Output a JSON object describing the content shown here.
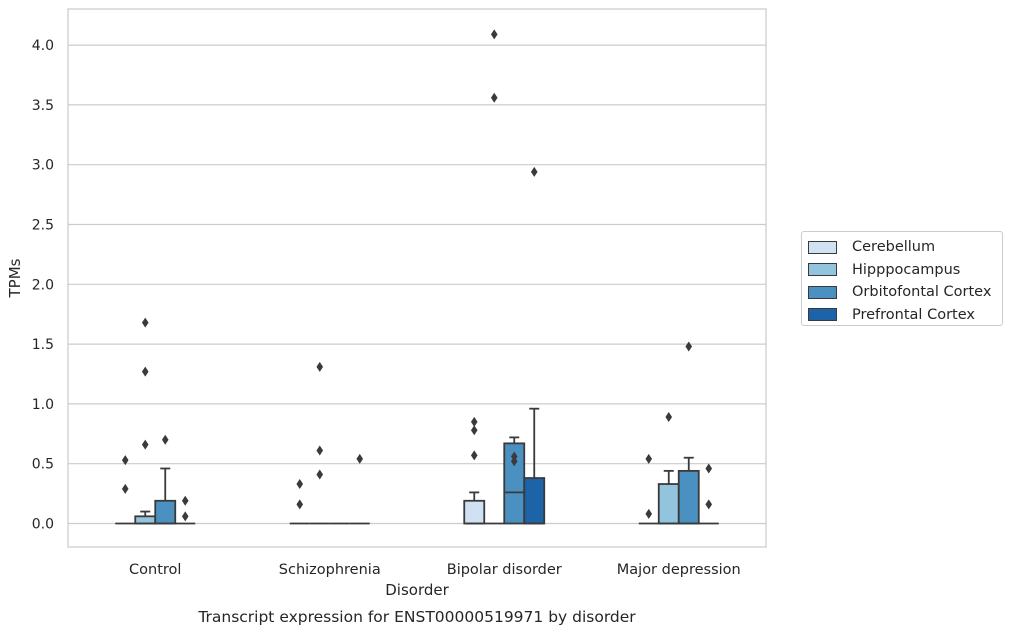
{
  "chart_data": {
    "type": "box",
    "title": "Transcript expression for ENST00000519971 by disorder",
    "xlabel": "Disorder",
    "ylabel": "TPMs",
    "ylim": [
      -0.2,
      4.3
    ],
    "yticks": [
      "0.0",
      "0.5",
      "1.0",
      "1.5",
      "2.0",
      "2.5",
      "3.0",
      "3.5",
      "4.0"
    ],
    "grid": true,
    "legend_position": "right",
    "categories": [
      "Control",
      "Schizophrenia",
      "Bipolar disorder",
      "Major depression"
    ],
    "series": [
      {
        "name": "Cerebellum",
        "color": "#cfe1f2",
        "boxes": [
          {
            "q1": 0,
            "median": 0,
            "q3": 0,
            "whislo": 0,
            "whishi": 0,
            "fliers": [
              0.53,
              0.29
            ]
          },
          {
            "q1": 0,
            "median": 0,
            "q3": 0,
            "whislo": 0,
            "whishi": 0,
            "fliers": [
              0.33,
              0.16
            ]
          },
          {
            "q1": 0,
            "median": 0,
            "q3": 0.19,
            "whislo": 0,
            "whishi": 0.26,
            "fliers": [
              0.85,
              0.78,
              0.57
            ]
          },
          {
            "q1": 0,
            "median": 0,
            "q3": 0,
            "whislo": 0,
            "whishi": 0,
            "fliers": [
              0.54,
              0.08
            ]
          }
        ]
      },
      {
        "name": "Hipppocampus",
        "color": "#93c4de",
        "boxes": [
          {
            "q1": 0,
            "median": 0,
            "q3": 0.06,
            "whislo": 0,
            "whishi": 0.1,
            "fliers": [
              1.68,
              1.27,
              0.66
            ]
          },
          {
            "q1": 0,
            "median": 0,
            "q3": 0,
            "whislo": 0,
            "whishi": 0,
            "fliers": [
              1.31,
              0.61,
              0.41
            ]
          },
          {
            "q1": 0,
            "median": 0,
            "q3": 0,
            "whislo": 0,
            "whishi": 0,
            "fliers": [
              4.09,
              3.56
            ]
          },
          {
            "q1": 0,
            "median": 0,
            "q3": 0.33,
            "whislo": 0,
            "whishi": 0.44,
            "fliers": [
              0.89
            ]
          }
        ]
      },
      {
        "name": "Orbitofontal Cortex",
        "color": "#4a91c2",
        "boxes": [
          {
            "q1": 0,
            "median": 0,
            "q3": 0.19,
            "whislo": 0,
            "whishi": 0.46,
            "fliers": [
              0.7
            ]
          },
          {
            "q1": 0,
            "median": 0,
            "q3": 0,
            "whislo": 0,
            "whishi": 0,
            "fliers": []
          },
          {
            "q1": 0,
            "median": 0.26,
            "q3": 0.67,
            "whislo": 0,
            "whishi": 0.72,
            "fliers": [
              0.56,
              0.52
            ]
          },
          {
            "q1": 0,
            "median": 0,
            "q3": 0.44,
            "whislo": 0,
            "whishi": 0.55,
            "fliers": [
              1.48
            ]
          }
        ]
      },
      {
        "name": "Prefrontal Cortex",
        "color": "#1c63a8",
        "boxes": [
          {
            "q1": 0,
            "median": 0,
            "q3": 0,
            "whislo": 0,
            "whishi": 0,
            "fliers": [
              0.19,
              0.06
            ]
          },
          {
            "q1": 0,
            "median": 0,
            "q3": 0,
            "whislo": 0,
            "whishi": 0,
            "fliers": [
              0.54
            ]
          },
          {
            "q1": 0,
            "median": 0,
            "q3": 0.38,
            "whislo": 0,
            "whishi": 0.96,
            "fliers": [
              2.94
            ]
          },
          {
            "q1": 0,
            "median": 0,
            "q3": 0,
            "whislo": 0,
            "whishi": 0,
            "fliers": [
              0.46,
              0.16
            ]
          }
        ]
      }
    ]
  }
}
